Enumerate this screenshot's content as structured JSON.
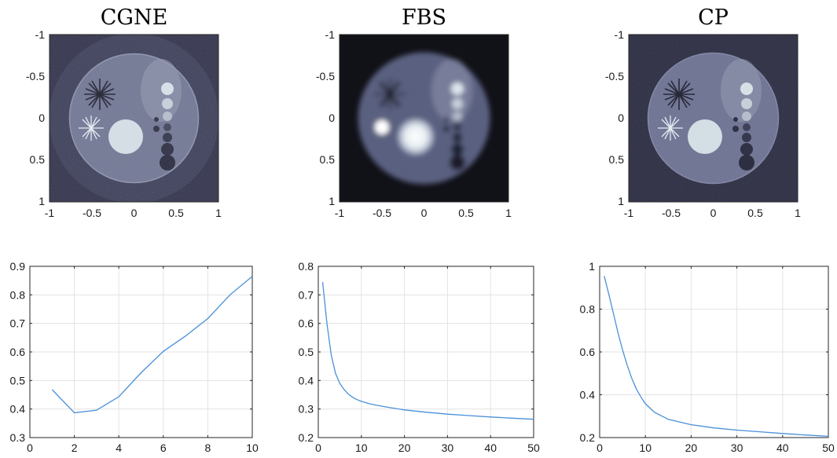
{
  "colors": {
    "line": "#4a90d9",
    "axis": "#262626",
    "grid": "#e3e3e3",
    "image_bg_cgne": "#2f3048",
    "image_bg_fbs": "#111118",
    "image_bg_cp": "#2a2b40",
    "phantom_body": "#6e7390",
    "phantom_light": "#d8e2ea",
    "phantom_dark": "#1c1d2c"
  },
  "images": [
    {
      "title": "CGNE",
      "xticks": [
        "-1",
        "-0.5",
        "0",
        "0.5",
        "1"
      ],
      "yticks": [
        "-1",
        "-0.5",
        "0",
        "0.5",
        "1"
      ],
      "icon": "reconstruction-phantom-image"
    },
    {
      "title": "FBS",
      "xticks": [
        "-1",
        "-0.5",
        "0",
        "0.5",
        "1"
      ],
      "yticks": [
        "-1",
        "-0.5",
        "0",
        "0.5",
        "1"
      ],
      "icon": "reconstruction-phantom-image"
    },
    {
      "title": "CP",
      "xticks": [
        "-1",
        "-0.5",
        "0",
        "0.5",
        "1"
      ],
      "yticks": [
        "-1",
        "-0.5",
        "0",
        "0.5",
        "1"
      ],
      "icon": "reconstruction-phantom-image"
    }
  ],
  "chart_data": [
    {
      "type": "line",
      "title": "",
      "xlabel": "",
      "ylabel": "",
      "xlim": [
        0,
        10
      ],
      "ylim": [
        0.3,
        0.9
      ],
      "xticks": [
        0,
        2,
        4,
        6,
        8,
        10
      ],
      "yticks": [
        0.3,
        0.4,
        0.5,
        0.6,
        0.7,
        0.8,
        0.9
      ],
      "grid": true,
      "series": [
        {
          "x": [
            1,
            2,
            3,
            4,
            5,
            6,
            7,
            8,
            9,
            10
          ],
          "y": [
            0.468,
            0.387,
            0.396,
            0.443,
            0.527,
            0.602,
            0.656,
            0.717,
            0.8,
            0.865
          ]
        }
      ]
    },
    {
      "type": "line",
      "title": "",
      "xlabel": "",
      "ylabel": "",
      "xlim": [
        0,
        50
      ],
      "ylim": [
        0.2,
        0.8
      ],
      "xticks": [
        0,
        10,
        20,
        30,
        40,
        50
      ],
      "yticks": [
        0.2,
        0.3,
        0.4,
        0.5,
        0.6,
        0.7,
        0.8
      ],
      "grid": true,
      "series": [
        {
          "x": [
            1,
            2,
            3,
            4,
            5,
            6,
            7,
            8,
            9,
            10,
            12,
            15,
            20,
            25,
            30,
            35,
            40,
            45,
            50
          ],
          "y": [
            0.745,
            0.6,
            0.49,
            0.425,
            0.39,
            0.368,
            0.352,
            0.341,
            0.333,
            0.327,
            0.318,
            0.309,
            0.297,
            0.289,
            0.282,
            0.277,
            0.272,
            0.268,
            0.264
          ]
        }
      ]
    },
    {
      "type": "line",
      "title": "",
      "xlabel": "",
      "ylabel": "",
      "xlim": [
        0,
        50
      ],
      "ylim": [
        0.2,
        1.0
      ],
      "xticks": [
        0,
        10,
        20,
        30,
        40,
        50
      ],
      "yticks": [
        0.2,
        0.4,
        0.6,
        0.8,
        1
      ],
      "grid": true,
      "series": [
        {
          "x": [
            1,
            2,
            3,
            4,
            5,
            6,
            7,
            8,
            9,
            10,
            12,
            15,
            20,
            25,
            30,
            35,
            40,
            45,
            50
          ],
          "y": [
            0.955,
            0.87,
            0.78,
            0.69,
            0.61,
            0.54,
            0.478,
            0.428,
            0.39,
            0.358,
            0.318,
            0.285,
            0.26,
            0.245,
            0.235,
            0.227,
            0.219,
            0.212,
            0.206
          ]
        }
      ]
    }
  ]
}
